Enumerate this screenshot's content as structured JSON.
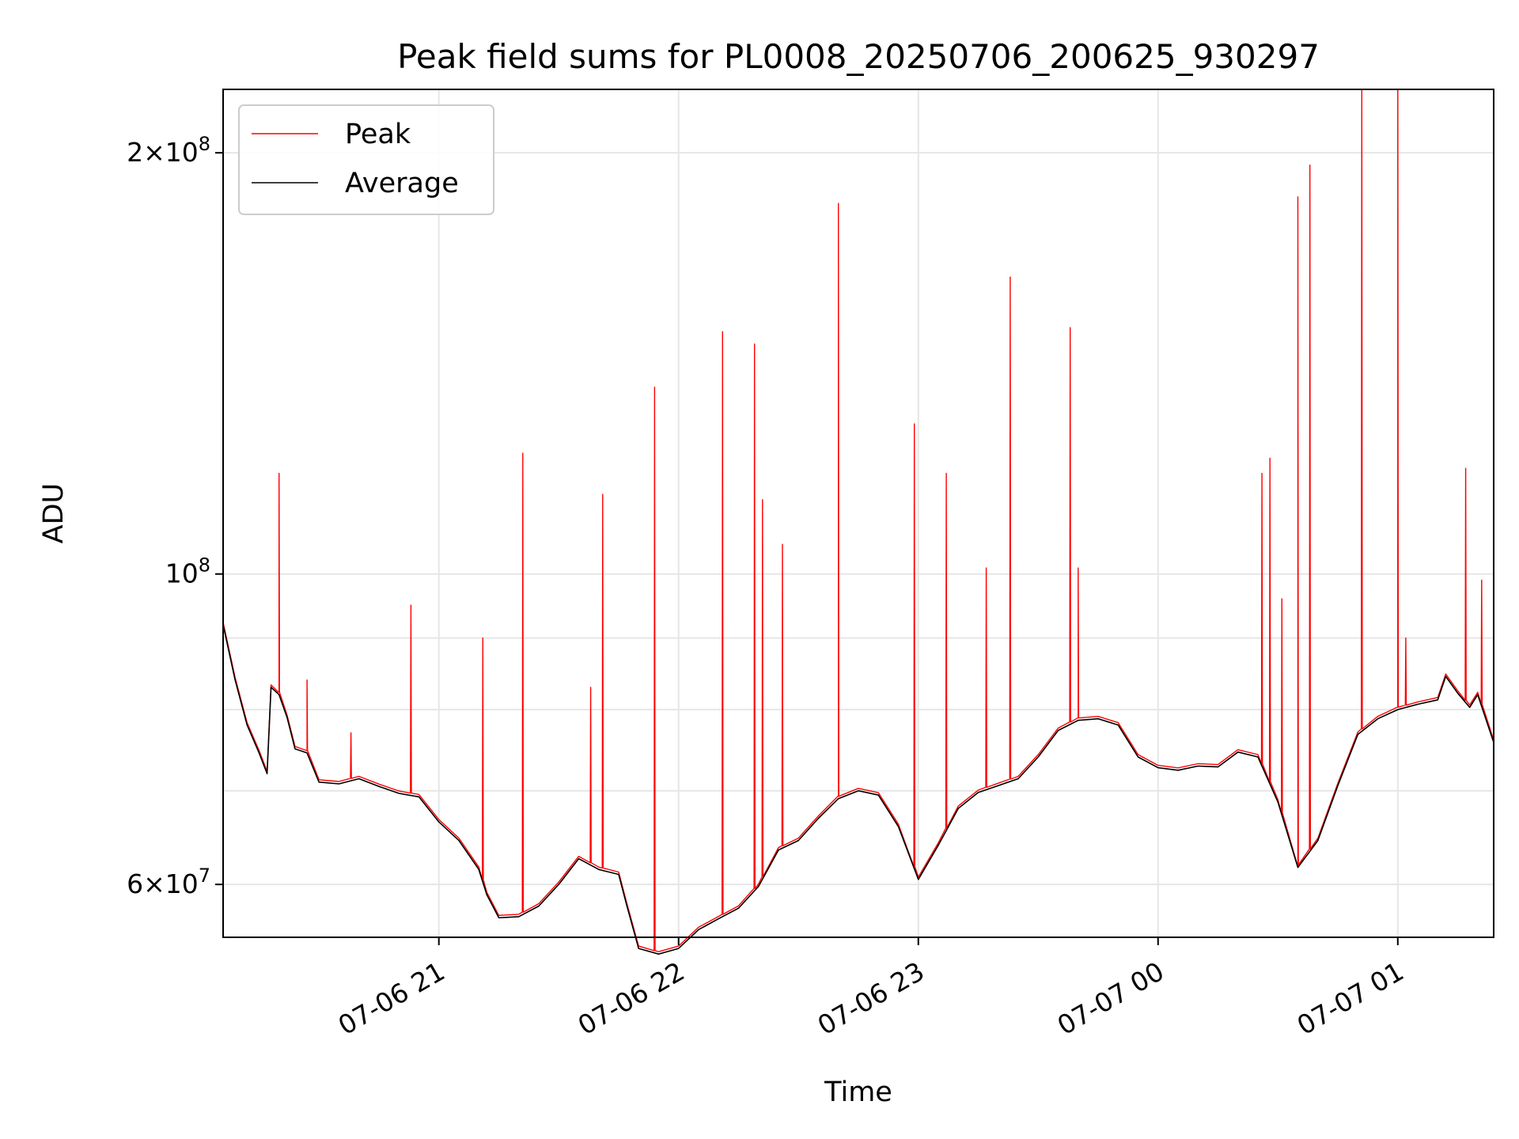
{
  "chart_data": {
    "type": "line",
    "title": "Peak field sums for PL0008_20250706_200625_930297",
    "xlabel": "Time",
    "ylabel": "ADU",
    "y_scale": "log",
    "grid": true,
    "legend_position": "top-left",
    "xlim": [
      "2025-07-06 20:06",
      "2025-07-07 01:24"
    ],
    "ylim": [
      55000000,
      222000000
    ],
    "x_ticks": [
      {
        "value": "2025-07-06 21:00",
        "label": "07-06 21"
      },
      {
        "value": "2025-07-06 22:00",
        "label": "07-06 22"
      },
      {
        "value": "2025-07-06 23:00",
        "label": "07-06 23"
      },
      {
        "value": "2025-07-07 00:00",
        "label": "07-07 00"
      },
      {
        "value": "2025-07-07 01:00",
        "label": "07-07 01"
      }
    ],
    "y_ticks": [
      {
        "value": 60000000,
        "base": "6",
        "exp": "7"
      },
      {
        "value": 100000000,
        "base": "",
        "exp": "8"
      },
      {
        "value": 200000000,
        "base": "2",
        "exp": "8"
      }
    ],
    "y_minor_grid": [
      70000000,
      80000000,
      90000000
    ],
    "series": [
      {
        "name": "Average",
        "color": "#000000",
        "x": [
          "2025-07-06 20:06",
          "2025-07-06 20:09",
          "2025-07-06 20:12",
          "2025-07-06 20:15",
          "2025-07-06 20:17",
          "2025-07-06 20:18",
          "2025-07-06 20:20",
          "2025-07-06 20:22",
          "2025-07-06 20:24",
          "2025-07-06 20:27",
          "2025-07-06 20:30",
          "2025-07-06 20:35",
          "2025-07-06 20:40",
          "2025-07-06 20:45",
          "2025-07-06 20:50",
          "2025-07-06 20:55",
          "2025-07-06 21:00",
          "2025-07-06 21:05",
          "2025-07-06 21:10",
          "2025-07-06 21:12",
          "2025-07-06 21:15",
          "2025-07-06 21:20",
          "2025-07-06 21:25",
          "2025-07-06 21:30",
          "2025-07-06 21:35",
          "2025-07-06 21:40",
          "2025-07-06 21:45",
          "2025-07-06 21:47",
          "2025-07-06 21:50",
          "2025-07-06 21:55",
          "2025-07-06 22:00",
          "2025-07-06 22:05",
          "2025-07-06 22:10",
          "2025-07-06 22:15",
          "2025-07-06 22:20",
          "2025-07-06 22:25",
          "2025-07-06 22:30",
          "2025-07-06 22:35",
          "2025-07-06 22:40",
          "2025-07-06 22:45",
          "2025-07-06 22:50",
          "2025-07-06 22:55",
          "2025-07-06 23:00",
          "2025-07-06 23:05",
          "2025-07-06 23:10",
          "2025-07-06 23:15",
          "2025-07-06 23:20",
          "2025-07-06 23:25",
          "2025-07-06 23:30",
          "2025-07-06 23:35",
          "2025-07-06 23:40",
          "2025-07-06 23:45",
          "2025-07-06 23:50",
          "2025-07-06 23:55",
          "2025-07-07 00:00",
          "2025-07-07 00:05",
          "2025-07-07 00:10",
          "2025-07-07 00:15",
          "2025-07-07 00:20",
          "2025-07-07 00:25",
          "2025-07-07 00:30",
          "2025-07-07 00:35",
          "2025-07-07 00:40",
          "2025-07-07 00:45",
          "2025-07-07 00:50",
          "2025-07-07 00:55",
          "2025-07-07 01:00",
          "2025-07-07 01:05",
          "2025-07-07 01:10",
          "2025-07-07 01:12",
          "2025-07-07 01:15",
          "2025-07-07 01:18",
          "2025-07-07 01:20",
          "2025-07-07 01:24"
        ],
        "y": [
          92000000,
          84000000,
          78000000,
          74500000,
          72000000,
          83000000,
          82000000,
          79000000,
          75000000,
          74500000,
          71000000,
          70800000,
          71400000,
          70500000,
          69700000,
          69300000,
          66500000,
          64500000,
          61500000,
          59000000,
          56800000,
          56900000,
          57900000,
          60000000,
          62600000,
          61500000,
          61000000,
          58000000,
          54000000,
          53500000,
          54000000,
          55700000,
          56700000,
          57700000,
          59800000,
          63500000,
          64500000,
          66900000,
          69100000,
          70000000,
          69500000,
          66000000,
          60500000,
          64000000,
          68000000,
          69800000,
          70600000,
          71400000,
          74000000,
          77300000,
          78600000,
          78800000,
          78000000,
          74000000,
          72700000,
          72400000,
          72900000,
          72800000,
          74600000,
          74000000,
          68700000,
          61700000,
          64500000,
          70600000,
          76800000,
          78800000,
          80000000,
          80700000,
          81300000,
          84500000,
          82200000,
          80300000,
          82000000,
          75800000
        ]
      },
      {
        "name": "Peak",
        "color": "#ff0000",
        "spikes": [
          {
            "x": "2025-07-06 20:20",
            "y": 118000000
          },
          {
            "x": "2025-07-06 20:27",
            "y": 84000000
          },
          {
            "x": "2025-07-06 20:38",
            "y": 77000000
          },
          {
            "x": "2025-07-06 20:53",
            "y": 95000000
          },
          {
            "x": "2025-07-06 21:11",
            "y": 90000000
          },
          {
            "x": "2025-07-06 21:21",
            "y": 122000000
          },
          {
            "x": "2025-07-06 21:38",
            "y": 83000000
          },
          {
            "x": "2025-07-06 21:41",
            "y": 114000000
          },
          {
            "x": "2025-07-06 21:54",
            "y": 136000000
          },
          {
            "x": "2025-07-06 22:11",
            "y": 149000000
          },
          {
            "x": "2025-07-06 22:19",
            "y": 146000000
          },
          {
            "x": "2025-07-06 22:21",
            "y": 113000000
          },
          {
            "x": "2025-07-06 22:26",
            "y": 105000000
          },
          {
            "x": "2025-07-06 22:40",
            "y": 184000000
          },
          {
            "x": "2025-07-06 22:59",
            "y": 128000000
          },
          {
            "x": "2025-07-06 23:07",
            "y": 118000000
          },
          {
            "x": "2025-07-06 23:17",
            "y": 101000000
          },
          {
            "x": "2025-07-06 23:23",
            "y": 163000000
          },
          {
            "x": "2025-07-06 23:38",
            "y": 150000000
          },
          {
            "x": "2025-07-06 23:40",
            "y": 101000000
          },
          {
            "x": "2025-07-07 00:26",
            "y": 118000000
          },
          {
            "x": "2025-07-07 00:28",
            "y": 121000000
          },
          {
            "x": "2025-07-07 00:31",
            "y": 96000000
          },
          {
            "x": "2025-07-07 00:35",
            "y": 186000000
          },
          {
            "x": "2025-07-07 00:38",
            "y": 196000000
          },
          {
            "x": "2025-07-07 00:51",
            "y": 222000000
          },
          {
            "x": "2025-07-07 01:00",
            "y": 222000000
          },
          {
            "x": "2025-07-07 01:02",
            "y": 90000000
          },
          {
            "x": "2025-07-07 01:17",
            "y": 119000000
          },
          {
            "x": "2025-07-07 01:21",
            "y": 99000000
          }
        ]
      }
    ]
  }
}
